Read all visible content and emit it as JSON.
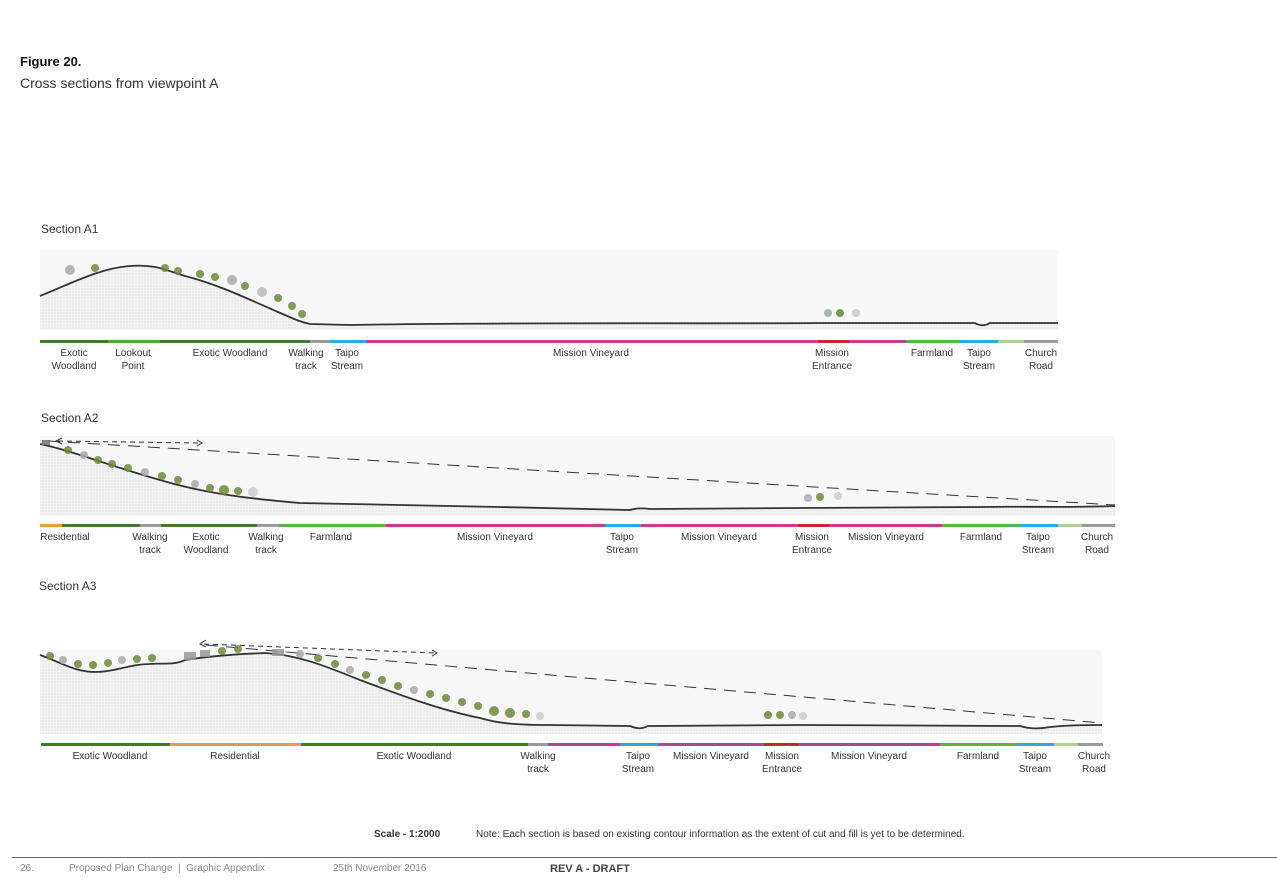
{
  "figure": {
    "title": "Figure 20.",
    "subtitle": "Cross sections from viewpoint A"
  },
  "colors": {
    "exotic_woodland": "#3f7a2e",
    "lookout_point": "#5aa345",
    "walking_track": "#9b9b9b",
    "taipo_stream": "#29abe2",
    "mission_vineyard": "#c2408b",
    "mission_entrance": "#c6282e",
    "farmland": "#5bb249",
    "residential": "#ee9a45",
    "church_road": "#9b9b9b",
    "light_green": "#a9d38f",
    "terrain_line": "#333333"
  },
  "sections": [
    {
      "title": "Section A1",
      "labels": [
        {
          "text": "Exotic\nWoodland"
        },
        {
          "text": "Lookout\nPoint"
        },
        {
          "text": "Exotic Woodland"
        },
        {
          "text": "Walking\ntrack"
        },
        {
          "text": "Taipo\nStream"
        },
        {
          "text": "Mission Vineyard"
        },
        {
          "text": "Mission\nEntrance"
        },
        {
          "text": "Farmland"
        },
        {
          "text": "Taipo\nStream"
        },
        {
          "text": "Church\nRoad"
        }
      ]
    },
    {
      "title": "Section A2",
      "labels": [
        {
          "text": "Residential"
        },
        {
          "text": "Walking\ntrack"
        },
        {
          "text": "Exotic\nWoodland"
        },
        {
          "text": "Walking\ntrack"
        },
        {
          "text": "Farmland"
        },
        {
          "text": "Mission Vineyard"
        },
        {
          "text": "Taipo\nStream"
        },
        {
          "text": "Mission Vineyard"
        },
        {
          "text": "Mission\nEntrance"
        },
        {
          "text": "Mission Vineyard"
        },
        {
          "text": "Farmland"
        },
        {
          "text": "Taipo\nStream"
        },
        {
          "text": "Church\nRoad"
        }
      ]
    },
    {
      "title": "Section A3",
      "labels": [
        {
          "text": "Exotic Woodland"
        },
        {
          "text": "Residential"
        },
        {
          "text": "Exotic Woodland"
        },
        {
          "text": "Walking\ntrack"
        },
        {
          "text": "Taipo\nStream"
        },
        {
          "text": "Mission Vineyard"
        },
        {
          "text": "Mission\nEntrance"
        },
        {
          "text": "Mission Vineyard"
        },
        {
          "text": "Farmland"
        },
        {
          "text": "Taipo\nStream"
        },
        {
          "text": "Church\nRoad"
        }
      ]
    }
  ],
  "notes": {
    "scale": "Scale - 1:2000",
    "text": "Note: Each section is based on existing contour information as the extent of cut and fill is yet to be determined."
  },
  "footer": {
    "page": "26.",
    "document": "Proposed Plan Change  |  Graphic Appendix",
    "date": "25th November 2016",
    "revision": "REV A - DRAFT"
  }
}
